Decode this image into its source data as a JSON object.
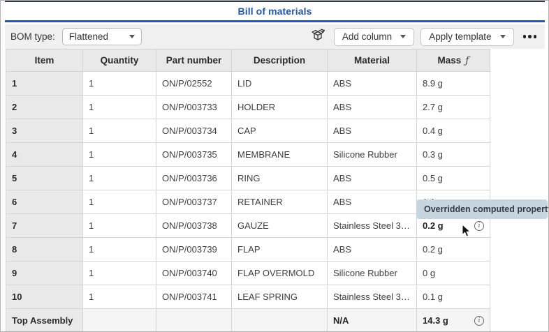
{
  "title": "Bill of materials",
  "toolbar": {
    "bom_type_label": "BOM type:",
    "bom_type_value": "Flattened",
    "add_column_label": "Add column",
    "apply_template_label": "Apply template"
  },
  "accent_colors": {
    "brand_blue": "#2457a7",
    "tooltip_bg": "#c7d5df",
    "header_gray": "#e9e9e9"
  },
  "table": {
    "columns": [
      "Item",
      "Quantity",
      "Part number",
      "Description",
      "Material",
      "Mass"
    ],
    "mass_function_symbol": "ƒ",
    "rows": [
      {
        "item": "1",
        "quantity": "1",
        "part_number": "ON/P/02552",
        "description": "LID",
        "material": "ABS",
        "mass": "8.9 g",
        "mass_bold": false,
        "info": false
      },
      {
        "item": "2",
        "quantity": "1",
        "part_number": "ON/P/003733",
        "description": "HOLDER",
        "material": "ABS",
        "mass": "2.7 g",
        "mass_bold": false,
        "info": false
      },
      {
        "item": "3",
        "quantity": "1",
        "part_number": "ON/P/003734",
        "description": "CAP",
        "material": "ABS",
        "mass": "0.4 g",
        "mass_bold": false,
        "info": false
      },
      {
        "item": "4",
        "quantity": "1",
        "part_number": "ON/P/003735",
        "description": "MEMBRANE",
        "material": "Silicone Rubber",
        "mass": "0.3 g",
        "mass_bold": false,
        "info": false
      },
      {
        "item": "5",
        "quantity": "1",
        "part_number": "ON/P/003736",
        "description": "RING",
        "material": "ABS",
        "mass": "0.5 g",
        "mass_bold": false,
        "info": false
      },
      {
        "item": "6",
        "quantity": "1",
        "part_number": "ON/P/003737",
        "description": "RETAINER",
        "material": "ABS",
        "mass": "1.1 g",
        "mass_bold": false,
        "info": false
      },
      {
        "item": "7",
        "quantity": "1",
        "part_number": "ON/P/003738",
        "description": "GAUZE",
        "material": "Stainless Steel 3…",
        "mass": "0.2 g",
        "mass_bold": true,
        "info": true
      },
      {
        "item": "8",
        "quantity": "1",
        "part_number": "ON/P/003739",
        "description": "FLAP",
        "material": "ABS",
        "mass": "0.2 g",
        "mass_bold": false,
        "info": false
      },
      {
        "item": "9",
        "quantity": "1",
        "part_number": "ON/P/003740",
        "description": "FLAP OVERMOLD",
        "material": "Silicone Rubber",
        "mass": "0 g",
        "mass_bold": false,
        "info": false
      },
      {
        "item": "10",
        "quantity": "1",
        "part_number": "ON/P/003741",
        "description": "LEAF SPRING",
        "material": "Stainless Steel 3…",
        "mass": "0.1 g",
        "mass_bold": false,
        "info": false
      },
      {
        "item": "Top Assembly",
        "quantity": "",
        "part_number": "",
        "description": "",
        "material": "N/A",
        "material_bold": true,
        "mass": "14.3 g",
        "mass_bold": true,
        "info": true,
        "is_summary": true
      }
    ]
  },
  "tooltip": {
    "text": "Overridden computed property."
  }
}
